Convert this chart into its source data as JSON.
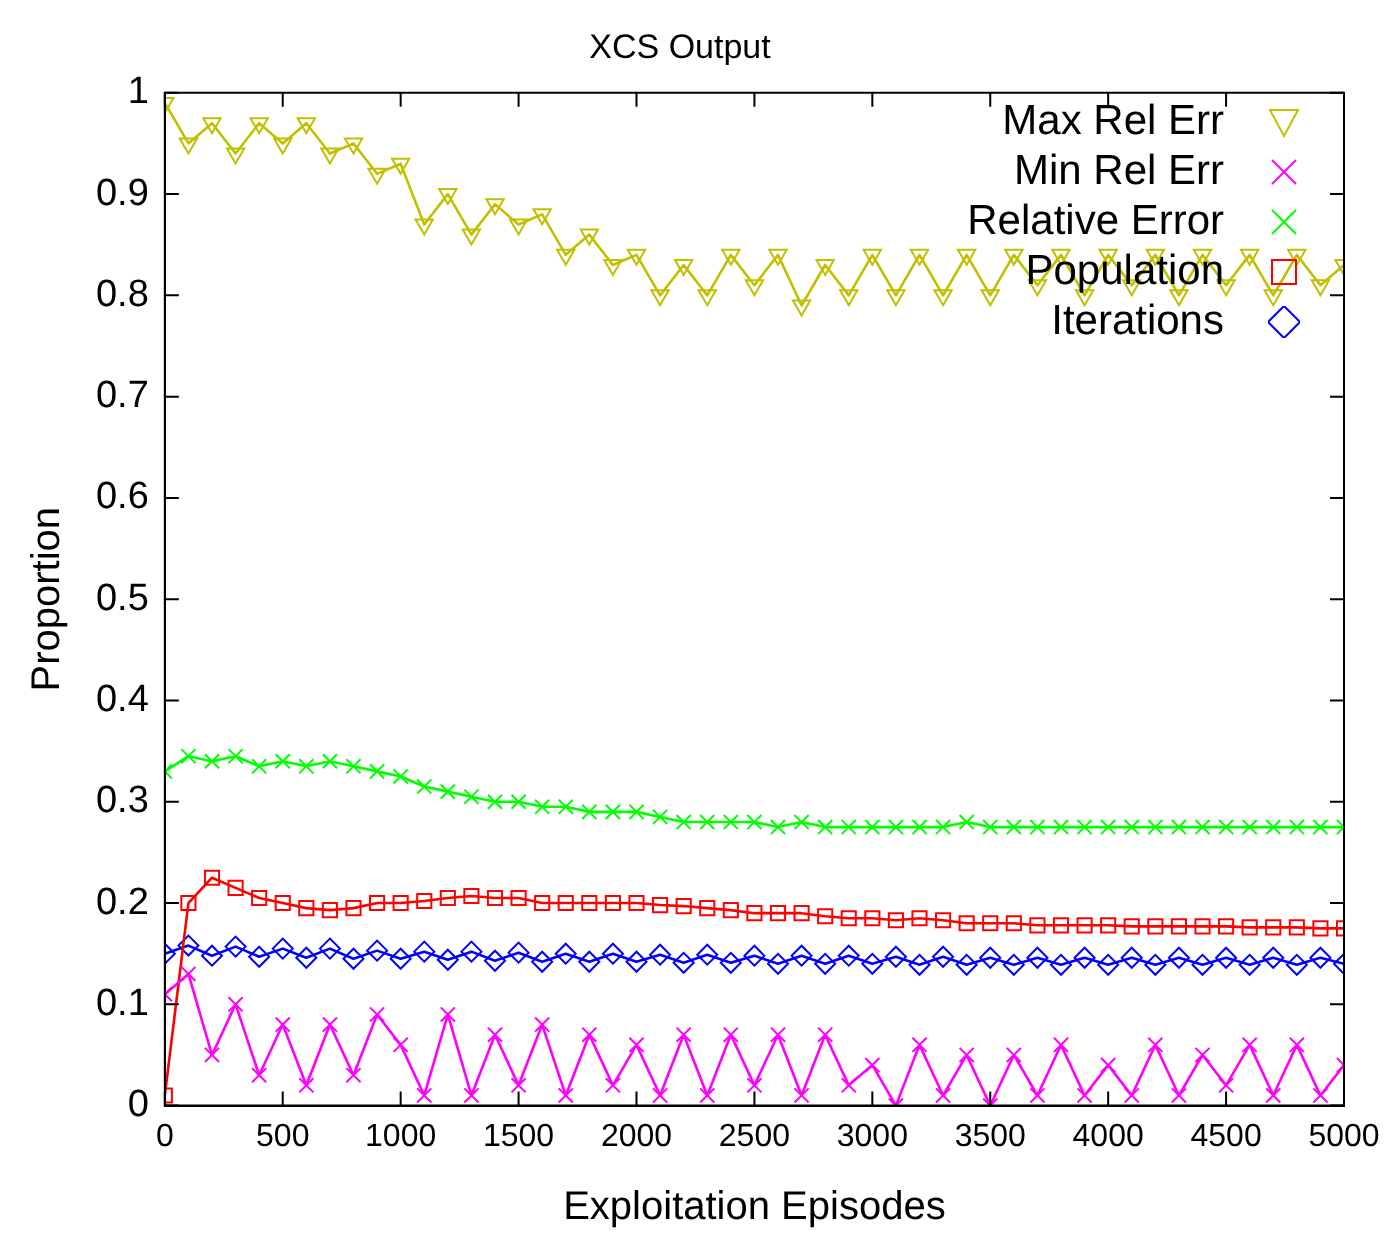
{
  "chart_data": {
    "type": "line",
    "title": "XCS Output",
    "xlabel": "Exploitation Episodes",
    "ylabel": "Proportion",
    "x": [
      0,
      100,
      200,
      300,
      400,
      500,
      600,
      700,
      800,
      900,
      1000,
      1100,
      1200,
      1300,
      1400,
      1500,
      1600,
      1700,
      1800,
      1900,
      2000,
      2100,
      2200,
      2300,
      2400,
      2500,
      2600,
      2700,
      2800,
      2900,
      3000,
      3100,
      3200,
      3300,
      3400,
      3500,
      3600,
      3700,
      3800,
      3900,
      4000,
      4100,
      4200,
      4300,
      4400,
      4500,
      4600,
      4700,
      4800,
      4900,
      5000
    ],
    "series": [
      {
        "name": "Max Rel Err",
        "color": "#c0c000",
        "marker": "triangle",
        "values": [
          0.99,
          0.95,
          0.97,
          0.94,
          0.97,
          0.95,
          0.97,
          0.94,
          0.95,
          0.92,
          0.93,
          0.87,
          0.9,
          0.86,
          0.89,
          0.87,
          0.88,
          0.84,
          0.86,
          0.83,
          0.84,
          0.8,
          0.83,
          0.8,
          0.84,
          0.81,
          0.84,
          0.79,
          0.83,
          0.8,
          0.84,
          0.8,
          0.84,
          0.8,
          0.84,
          0.8,
          0.84,
          0.81,
          0.84,
          0.8,
          0.84,
          0.81,
          0.84,
          0.8,
          0.84,
          0.81,
          0.84,
          0.8,
          0.84,
          0.81,
          0.83
        ]
      },
      {
        "name": "Min Rel Err",
        "color": "#ff00ff",
        "marker": "cross",
        "values": [
          0.11,
          0.13,
          0.05,
          0.1,
          0.03,
          0.08,
          0.02,
          0.08,
          0.03,
          0.09,
          0.06,
          0.01,
          0.09,
          0.01,
          0.07,
          0.02,
          0.08,
          0.01,
          0.07,
          0.02,
          0.06,
          0.01,
          0.07,
          0.01,
          0.07,
          0.02,
          0.07,
          0.01,
          0.07,
          0.02,
          0.04,
          0.0,
          0.06,
          0.01,
          0.05,
          0.0,
          0.05,
          0.01,
          0.06,
          0.01,
          0.04,
          0.01,
          0.06,
          0.01,
          0.05,
          0.02,
          0.06,
          0.01,
          0.06,
          0.01,
          0.04
        ]
      },
      {
        "name": "Relative Error",
        "color": "#00ff00",
        "marker": "cross",
        "values": [
          0.33,
          0.345,
          0.34,
          0.345,
          0.335,
          0.34,
          0.335,
          0.34,
          0.335,
          0.33,
          0.325,
          0.315,
          0.31,
          0.305,
          0.3,
          0.3,
          0.295,
          0.295,
          0.29,
          0.29,
          0.29,
          0.285,
          0.28,
          0.28,
          0.28,
          0.28,
          0.275,
          0.28,
          0.275,
          0.275,
          0.275,
          0.275,
          0.275,
          0.275,
          0.28,
          0.275,
          0.275,
          0.275,
          0.275,
          0.275,
          0.275,
          0.275,
          0.275,
          0.275,
          0.275,
          0.275,
          0.275,
          0.275,
          0.275,
          0.275,
          0.275
        ]
      },
      {
        "name": "Population",
        "color": "#ff0000",
        "marker": "square",
        "values": [
          0.01,
          0.2,
          0.225,
          0.215,
          0.205,
          0.2,
          0.195,
          0.193,
          0.195,
          0.2,
          0.2,
          0.202,
          0.205,
          0.207,
          0.205,
          0.205,
          0.2,
          0.2,
          0.2,
          0.2,
          0.2,
          0.198,
          0.197,
          0.195,
          0.193,
          0.19,
          0.19,
          0.19,
          0.187,
          0.185,
          0.185,
          0.183,
          0.185,
          0.183,
          0.18,
          0.18,
          0.18,
          0.178,
          0.178,
          0.178,
          0.178,
          0.177,
          0.177,
          0.177,
          0.177,
          0.177,
          0.176,
          0.176,
          0.176,
          0.175,
          0.175
        ]
      },
      {
        "name": "Iterations",
        "color": "#0000ff",
        "marker": "diamond",
        "values": [
          0.15,
          0.158,
          0.148,
          0.157,
          0.147,
          0.155,
          0.146,
          0.155,
          0.145,
          0.153,
          0.145,
          0.152,
          0.144,
          0.152,
          0.143,
          0.151,
          0.142,
          0.15,
          0.142,
          0.15,
          0.142,
          0.149,
          0.141,
          0.149,
          0.141,
          0.148,
          0.14,
          0.148,
          0.14,
          0.148,
          0.14,
          0.147,
          0.139,
          0.147,
          0.139,
          0.146,
          0.139,
          0.146,
          0.139,
          0.146,
          0.139,
          0.146,
          0.139,
          0.146,
          0.139,
          0.146,
          0.139,
          0.146,
          0.139,
          0.146,
          0.14
        ]
      }
    ],
    "xlim": [
      0,
      5000
    ],
    "xticks": [
      0,
      500,
      1000,
      1500,
      2000,
      2500,
      3000,
      3500,
      4000,
      4500,
      5000
    ],
    "ylim": [
      0,
      1
    ],
    "yticks": [
      0,
      0.1,
      0.2,
      0.3,
      0.4,
      0.5,
      0.6,
      0.7,
      0.8,
      0.9,
      1
    ],
    "legend": "top right",
    "grid": false
  }
}
